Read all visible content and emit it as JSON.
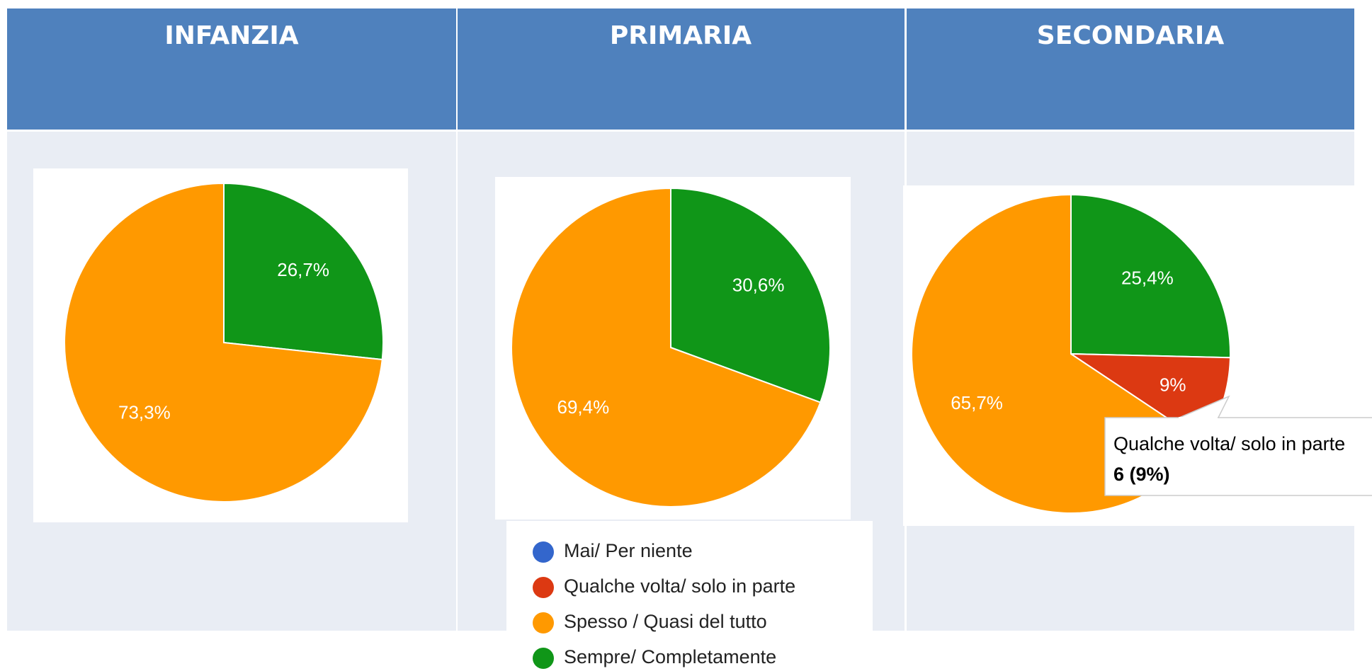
{
  "chart_data": [
    {
      "type": "pie",
      "title": "INFANZIA",
      "categories": [
        "Sempre/ Completamente",
        "Spesso / Quasi del tutto"
      ],
      "values": [
        26.7,
        73.3
      ],
      "value_labels": [
        "26,7%",
        "73,3%"
      ],
      "colors": [
        "#109618",
        "#ff9900"
      ]
    },
    {
      "type": "pie",
      "title": "PRIMARIA",
      "categories": [
        "Sempre/ Completamente",
        "Spesso / Quasi del tutto"
      ],
      "values": [
        30.6,
        69.4
      ],
      "value_labels": [
        "30,6%",
        "69,4%"
      ],
      "colors": [
        "#109618",
        "#ff9900"
      ]
    },
    {
      "type": "pie",
      "title": "SECONDARIA",
      "categories": [
        "Sempre/ Completamente",
        "Qualche volta/ solo in parte",
        "Spesso / Quasi del tutto"
      ],
      "values": [
        25.4,
        9,
        65.7
      ],
      "value_labels": [
        "25,4%",
        "9%",
        "65,7%"
      ],
      "colors": [
        "#109618",
        "#dc3912",
        "#ff9900"
      ]
    }
  ],
  "legend": [
    {
      "name": "Mai/ Per niente",
      "color": "#3366cc"
    },
    {
      "name": "Qualche volta/ solo in parte",
      "color": "#dc3912"
    },
    {
      "name": "Spesso / Quasi del tutto",
      "color": "#ff9900"
    },
    {
      "name": "Sempre/ Completamente",
      "color": "#109618"
    }
  ],
  "tooltip": {
    "title": "Qualche volta/ solo in parte",
    "text": "6 (9%)"
  }
}
